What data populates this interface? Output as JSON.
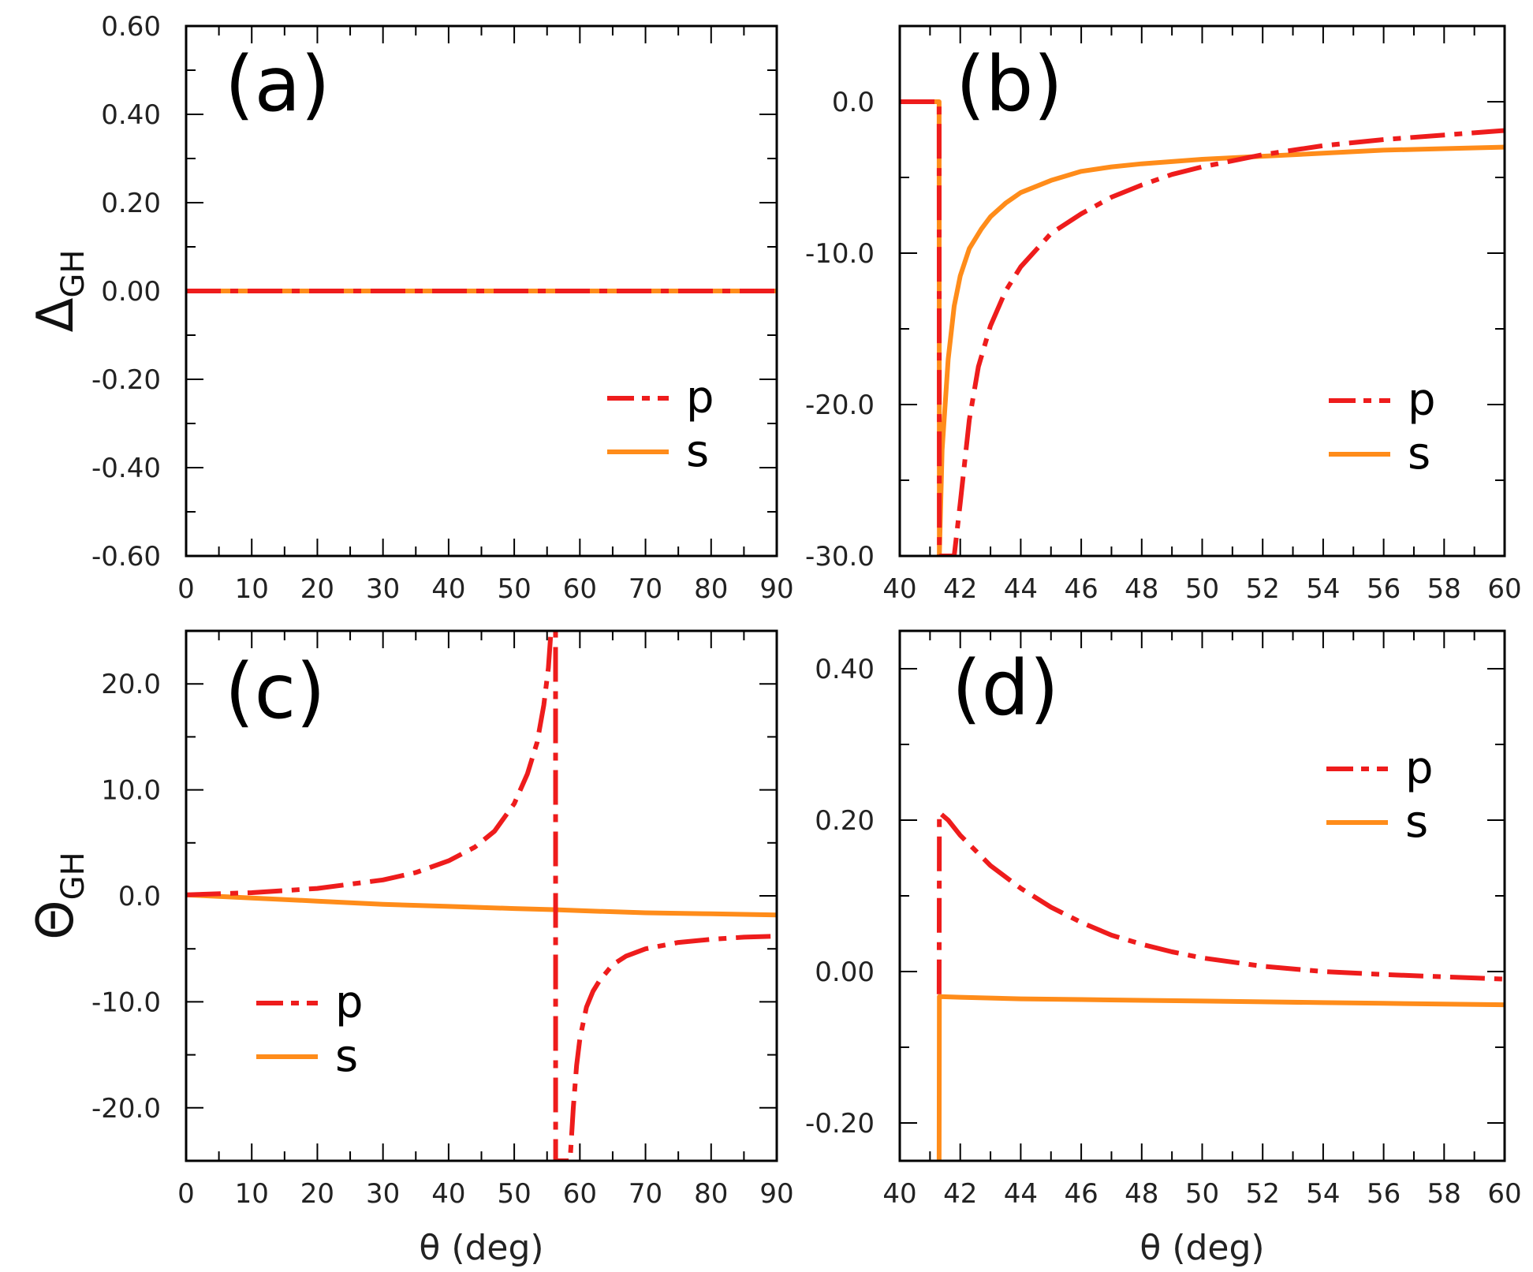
{
  "chart_data": [
    {
      "type": "line",
      "panel": "(a)",
      "ylabel": {
        "main": "Δ",
        "sub": "GH"
      },
      "xlabel": "",
      "xlim": [
        0,
        90
      ],
      "ylim": [
        -0.6,
        0.6
      ],
      "xticks": [
        "0",
        "10",
        "20",
        "30",
        "40",
        "50",
        "60",
        "70",
        "80",
        "90"
      ],
      "yticks": [
        "0.60",
        "0.40",
        "0.20",
        "0.00",
        "-0.20",
        "-0.40",
        "-0.60"
      ],
      "legend": {
        "position": "lower-right",
        "entries": [
          "p",
          "s"
        ]
      },
      "series": [
        {
          "name": "p",
          "style": "dashdot",
          "color": "#ee1c1c",
          "x": [
            0,
            90
          ],
          "y": [
            0.0,
            0.0
          ]
        },
        {
          "name": "s",
          "style": "solid",
          "color": "#ff8c1a",
          "x": [
            0,
            90
          ],
          "y": [
            0.0,
            0.0
          ]
        }
      ]
    },
    {
      "type": "line",
      "panel": "(b)",
      "ylabel": null,
      "xlabel": "",
      "xlim": [
        40,
        60
      ],
      "ylim": [
        -30,
        5
      ],
      "xticks": [
        "40",
        "42",
        "44",
        "46",
        "48",
        "50",
        "52",
        "54",
        "56",
        "58",
        "60"
      ],
      "yticks": [
        "0.0",
        "-10.0",
        "-20.0",
        "-30.0"
      ],
      "legend": {
        "position": "lower-right",
        "entries": [
          "p",
          "s"
        ]
      },
      "series": [
        {
          "name": "p",
          "style": "dashdot",
          "color": "#ee1c1c",
          "x": [
            40,
            41.3,
            41.31,
            41.8,
            42.0,
            42.3,
            42.6,
            43.0,
            43.5,
            44,
            45,
            46,
            47,
            48,
            49,
            50,
            52,
            54,
            56,
            58,
            60
          ],
          "y": [
            0,
            0,
            -30,
            -30,
            -26.5,
            -21,
            -17.5,
            -14.8,
            -12.5,
            -10.9,
            -8.7,
            -7.4,
            -6.3,
            -5.5,
            -4.8,
            -4.3,
            -3.5,
            -2.9,
            -2.5,
            -2.2,
            -1.9
          ]
        },
        {
          "name": "s",
          "style": "solid",
          "color": "#ff8c1a",
          "x": [
            40,
            41.3,
            41.31,
            41.4,
            41.6,
            41.8,
            42,
            42.3,
            42.7,
            43,
            43.5,
            44,
            45,
            46,
            47,
            48,
            50,
            52,
            54,
            56,
            58,
            60
          ],
          "y": [
            0,
            0,
            -30,
            -23,
            -17,
            -13.5,
            -11.5,
            -9.7,
            -8.4,
            -7.6,
            -6.7,
            -6.0,
            -5.2,
            -4.6,
            -4.3,
            -4.1,
            -3.8,
            -3.6,
            -3.4,
            -3.2,
            -3.1,
            -3.0
          ]
        }
      ]
    },
    {
      "type": "line",
      "panel": "(c)",
      "ylabel": {
        "main": "Θ",
        "sub": "GH"
      },
      "xlabel": "θ (deg)",
      "xlim": [
        0,
        90
      ],
      "ylim": [
        -25,
        25
      ],
      "xticks": [
        "0",
        "10",
        "20",
        "30",
        "40",
        "50",
        "60",
        "70",
        "80",
        "90"
      ],
      "yticks": [
        "20.0",
        "10.0",
        "0.0",
        "-10.0",
        "-20.0"
      ],
      "legend": {
        "position": "lower-left",
        "entries": [
          "p",
          "s"
        ]
      },
      "series": [
        {
          "name": "p",
          "style": "dashdot",
          "color": "#ee1c1c",
          "x": [
            0,
            10,
            20,
            30,
            35,
            40,
            44,
            47,
            50,
            52,
            53.5,
            54.5,
            55.2,
            55.6,
            56.3,
            56.31,
            57.2,
            57.8,
            58.5,
            59,
            59.5,
            60,
            61,
            62,
            63,
            65,
            67,
            70,
            75,
            80,
            85,
            90
          ],
          "y": [
            0.1,
            0.3,
            0.7,
            1.5,
            2.2,
            3.3,
            4.6,
            6.1,
            8.7,
            11.5,
            14.5,
            18,
            21.5,
            25,
            25,
            -25,
            -25,
            -25,
            -25,
            -20,
            -16,
            -13.5,
            -10.5,
            -9,
            -8,
            -6.5,
            -5.7,
            -5.0,
            -4.4,
            -4.1,
            -3.9,
            -3.8
          ]
        },
        {
          "name": "s",
          "style": "solid",
          "color": "#ff8c1a",
          "x": [
            0,
            10,
            20,
            30,
            40,
            50,
            56,
            60,
            70,
            80,
            90
          ],
          "y": [
            0.1,
            -0.2,
            -0.5,
            -0.8,
            -1.0,
            -1.2,
            -1.3,
            -1.4,
            -1.6,
            -1.7,
            -1.8
          ]
        }
      ]
    },
    {
      "type": "line",
      "panel": "(d)",
      "ylabel": null,
      "xlabel": "θ (deg)",
      "xlim": [
        40,
        60
      ],
      "ylim": [
        -0.25,
        0.45
      ],
      "xticks": [
        "40",
        "42",
        "44",
        "46",
        "48",
        "50",
        "52",
        "54",
        "56",
        "58",
        "60"
      ],
      "yticks": [
        "0.40",
        "0.20",
        "0.00",
        "-0.20"
      ],
      "legend": {
        "position": "upper-right",
        "entries": [
          "p",
          "s"
        ]
      },
      "series": [
        {
          "name": "p",
          "style": "dashdot",
          "color": "#ee1c1c",
          "x": [
            41.3,
            41.31,
            41.6,
            42,
            43,
            44,
            45,
            46,
            47,
            48,
            49,
            50,
            52,
            54,
            56,
            58,
            60
          ],
          "y": [
            -0.03,
            0.21,
            0.2,
            0.18,
            0.14,
            0.11,
            0.085,
            0.065,
            0.048,
            0.036,
            0.026,
            0.018,
            0.007,
            0.0,
            -0.004,
            -0.007,
            -0.01
          ]
        },
        {
          "name": "s",
          "style": "solid",
          "color": "#ff8c1a",
          "x": [
            41.3,
            41.31,
            42,
            44,
            46,
            48,
            50,
            52,
            54,
            56,
            58,
            60
          ],
          "y": [
            -0.25,
            -0.033,
            -0.034,
            -0.036,
            -0.037,
            -0.038,
            -0.039,
            -0.04,
            -0.041,
            -0.042,
            -0.043,
            -0.044
          ]
        }
      ]
    }
  ]
}
